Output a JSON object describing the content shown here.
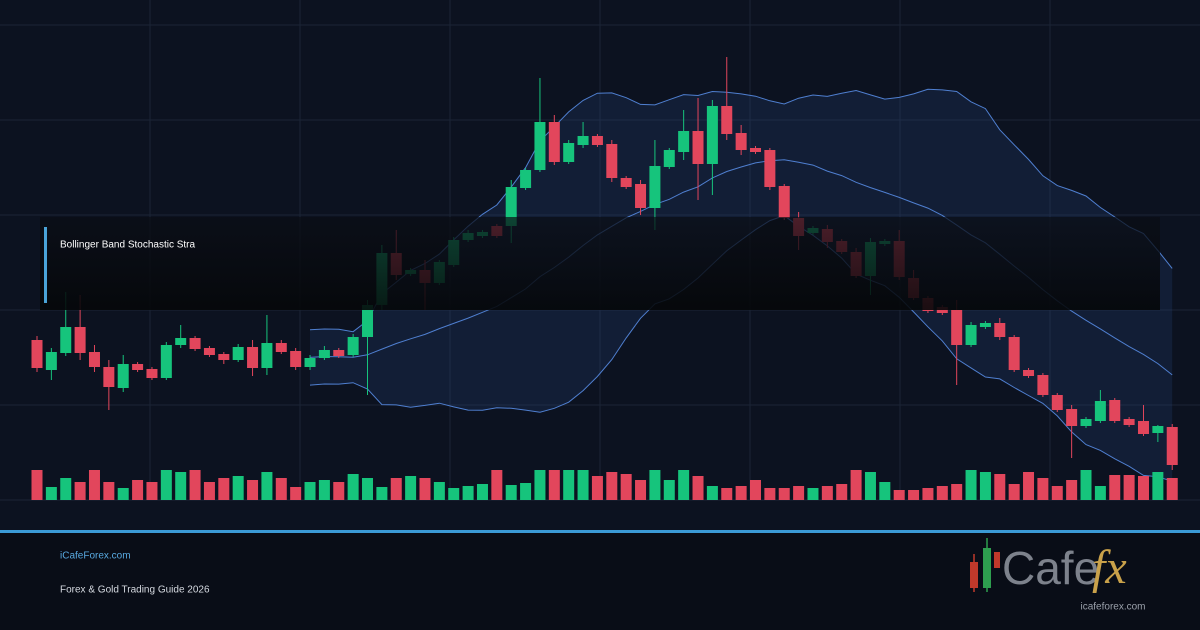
{
  "chart_data": {
    "type": "candlestick",
    "title": "Bollinger Band Stochastic Stra",
    "open": [
      160,
      130,
      147,
      173,
      148,
      133,
      112,
      136,
      131,
      122,
      155,
      162,
      152,
      146,
      140,
      153,
      132,
      157,
      149,
      133,
      142,
      150,
      145,
      163,
      195,
      247,
      226,
      230,
      217,
      235,
      260,
      264,
      274,
      274,
      312,
      330,
      378,
      338,
      355,
      364,
      356,
      322,
      316,
      292,
      333,
      348,
      369,
      336,
      394,
      367,
      352,
      350,
      314,
      282,
      267,
      271,
      259,
      248,
      224,
      256,
      259,
      222,
      202,
      193,
      190,
      155,
      173,
      177,
      163,
      130,
      125,
      105,
      91,
      74,
      79,
      100,
      81,
      79,
      67,
      73
    ],
    "high": [
      164,
      152,
      208,
      205,
      155,
      140,
      145,
      138,
      133,
      158,
      175,
      164,
      154,
      148,
      156,
      160,
      185,
      160,
      152,
      145,
      154,
      152,
      166,
      200,
      255,
      270,
      232,
      240,
      240,
      263,
      270,
      270,
      276,
      320,
      332,
      422,
      385,
      360,
      378,
      366,
      360,
      324,
      320,
      360,
      352,
      390,
      402,
      400,
      443,
      375,
      354,
      352,
      316,
      288,
      274,
      275,
      261,
      252,
      262,
      261,
      270,
      230,
      204,
      195,
      200,
      178,
      179,
      182,
      165,
      132,
      127,
      107,
      95,
      83,
      110,
      102,
      83,
      95,
      75,
      76
    ],
    "low": [
      128,
      120,
      144,
      140,
      128,
      90,
      108,
      128,
      120,
      120,
      152,
      149,
      143,
      136,
      138,
      124,
      125,
      146,
      130,
      130,
      140,
      142,
      143,
      105,
      190,
      220,
      224,
      190,
      215,
      233,
      258,
      262,
      262,
      257,
      310,
      328,
      335,
      336,
      352,
      353,
      318,
      311,
      285,
      270,
      331,
      340,
      300,
      305,
      360,
      345,
      346,
      310,
      280,
      250,
      265,
      252,
      246,
      222,
      205,
      254,
      220,
      200,
      187,
      185,
      115,
      153,
      171,
      160,
      128,
      122,
      103,
      88,
      42,
      72,
      77,
      77,
      73,
      64,
      58,
      30
    ],
    "close": [
      132,
      148,
      173,
      147,
      133,
      113,
      136,
      130,
      122,
      155,
      162,
      151,
      145,
      140,
      153,
      132,
      157,
      148,
      133,
      142,
      150,
      144,
      163,
      195,
      247,
      225,
      230,
      217,
      238,
      260,
      267,
      268,
      264,
      313,
      330,
      378,
      338,
      357,
      364,
      355,
      322,
      313,
      292,
      334,
      350,
      369,
      336,
      394,
      366,
      350,
      348,
      313,
      282,
      264,
      272,
      258,
      248,
      224,
      258,
      259,
      223,
      202,
      189,
      187,
      155,
      175,
      177,
      163,
      130,
      124,
      105,
      90,
      74,
      81,
      99,
      79,
      75,
      66,
      74,
      35
    ],
    "volume": [
      30,
      13,
      22,
      18,
      30,
      18,
      12,
      20,
      18,
      30,
      28,
      30,
      18,
      22,
      24,
      20,
      28,
      22,
      13,
      18,
      20,
      18,
      26,
      22,
      13,
      22,
      24,
      22,
      18,
      12,
      14,
      16,
      30,
      15,
      17,
      30,
      30,
      30,
      30,
      24,
      28,
      26,
      20,
      30,
      20,
      30,
      24,
      14,
      12,
      14,
      20,
      12,
      12,
      14,
      12,
      14,
      16,
      30,
      28,
      18,
      10,
      10,
      12,
      14,
      16,
      30,
      28,
      26,
      16,
      28,
      22,
      14,
      20,
      30,
      14,
      25,
      25,
      24,
      28,
      22
    ],
    "ylim": [
      0,
      500
    ],
    "volume_lim": [
      0,
      100
    ],
    "up_color": "#16c47c",
    "down_color": "#e2465c",
    "bollinger": {
      "period": 20,
      "stddev": 2,
      "color": "#4f7fd0"
    }
  },
  "footer": {
    "site": "iCafeForex.com",
    "subtitle": "Forex & Gold Trading Guide 2026"
  },
  "logo": {
    "word": "Cafe",
    "accent": "fx",
    "url": "icafeforex.com"
  }
}
